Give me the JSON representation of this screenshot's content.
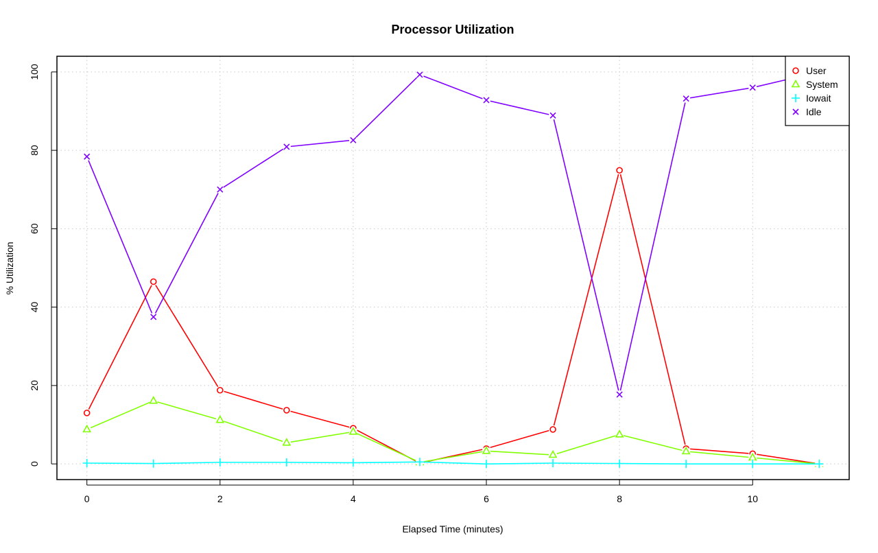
{
  "chart_data": {
    "type": "line",
    "title": "Processor Utilization",
    "xlabel": "Elapsed Time (minutes)",
    "ylabel": "% Utilization",
    "xlim": [
      -0.45,
      11.45
    ],
    "ylim": [
      -4,
      104
    ],
    "xticks": [
      0,
      2,
      4,
      6,
      8,
      10
    ],
    "yticks": [
      0,
      20,
      40,
      60,
      80,
      100
    ],
    "grid": true,
    "legend_position": "top-right",
    "x": [
      0,
      1,
      2,
      3,
      4,
      5,
      6,
      7,
      8,
      9,
      10,
      11
    ],
    "series": [
      {
        "name": "User",
        "color": "#FF0000",
        "marker": "circle",
        "values": [
          13.0,
          46.5,
          18.8,
          13.7,
          9.1,
          0.2,
          3.9,
          8.8,
          74.9,
          3.9,
          2.6,
          0.0
        ]
      },
      {
        "name": "System",
        "color": "#80FF00",
        "marker": "triangle",
        "values": [
          8.8,
          16.1,
          11.2,
          5.4,
          8.2,
          0.4,
          3.3,
          2.3,
          7.5,
          3.2,
          1.6,
          0.0
        ]
      },
      {
        "name": "Iowait",
        "color": "#00FFFF",
        "marker": "plus",
        "values": [
          0.2,
          0.1,
          0.4,
          0.4,
          0.3,
          0.5,
          0.0,
          0.2,
          0.1,
          0.0,
          0.0,
          0.0
        ]
      },
      {
        "name": "Idle",
        "color": "#8000FF",
        "marker": "cross",
        "values": [
          78.4,
          37.5,
          70.0,
          80.9,
          82.6,
          99.3,
          92.8,
          88.9,
          17.7,
          93.2,
          96.0,
          100.0
        ]
      }
    ]
  }
}
